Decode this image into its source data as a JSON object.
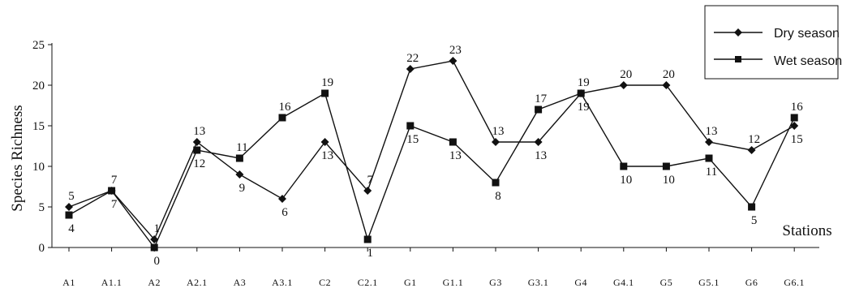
{
  "chart_data": {
    "type": "line",
    "title": "",
    "xlabel": "Stations",
    "ylabel": "Species Richness",
    "ylim": [
      0,
      25
    ],
    "yticks": [
      "0",
      "5",
      "10",
      "15",
      "20",
      "25"
    ],
    "categories": [
      "A1",
      "A1.1",
      "A2",
      "A2.1",
      "A3",
      "A3.1",
      "C2",
      "C2.1",
      "G1",
      "G1.1",
      "G3",
      "G3.1",
      "G4",
      "G4.1",
      "G5",
      "G5.1",
      "G6",
      "G6.1"
    ],
    "grid": false,
    "legend_position": "top-right",
    "series": [
      {
        "name": "Dry season",
        "marker": "diamond",
        "values": [
          5,
          7,
          1,
          13,
          9,
          6,
          13,
          7,
          22,
          23,
          13,
          13,
          19,
          20,
          20,
          13,
          12,
          15
        ],
        "labels": [
          "5",
          "7",
          "1",
          "13",
          "9",
          "6",
          "13",
          "7",
          "22",
          "23",
          "13",
          "13",
          "19",
          "20",
          "20",
          "13",
          "12",
          "15"
        ]
      },
      {
        "name": "Wet season",
        "marker": "square",
        "values": [
          4,
          7,
          0,
          12,
          11,
          16,
          19,
          1,
          15,
          13,
          8,
          17,
          19,
          10,
          10,
          11,
          5,
          16
        ],
        "labels": [
          "4",
          "7",
          "0",
          "12",
          "11",
          "16",
          "19",
          "1",
          "15",
          "13",
          "8",
          "17",
          "19",
          "10",
          "10",
          "11",
          "5",
          "16"
        ]
      }
    ]
  }
}
